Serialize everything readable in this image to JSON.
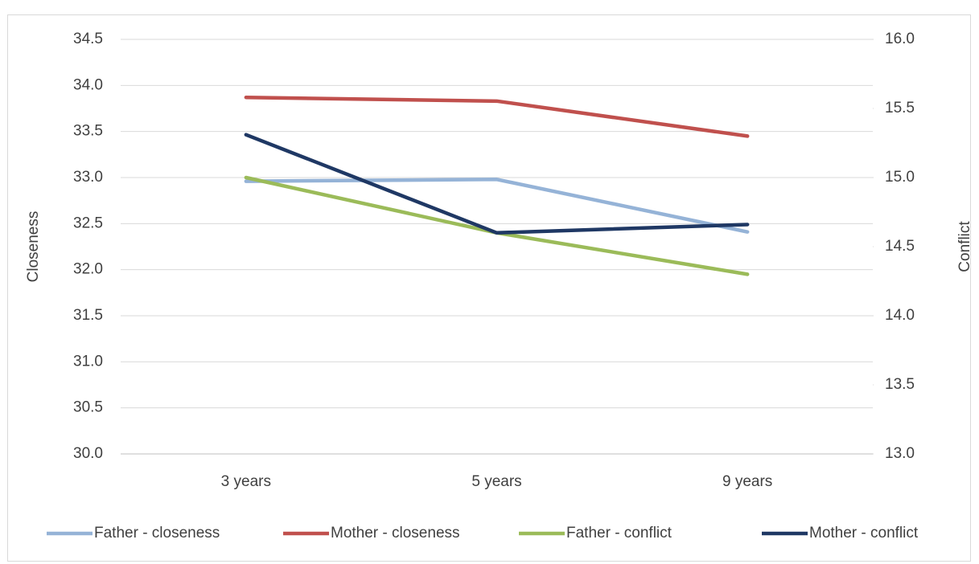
{
  "chart_data": {
    "type": "line",
    "categories": [
      "3 years",
      "5 years",
      "9 years"
    ],
    "y_label": "Closeness",
    "y2_label": "Conflict",
    "ylim": [
      30,
      34.5
    ],
    "yticks": [
      {
        "value": 30,
        "label": "30.0"
      },
      30.5,
      {
        "value": 31,
        "label": "31.0"
      },
      31.5,
      {
        "value": 32,
        "label": "32.0"
      },
      32.5,
      {
        "value": 33,
        "label": "33.0"
      },
      33.5,
      {
        "value": 34,
        "label": "34.0"
      },
      34.5
    ],
    "y2lim": [
      13,
      16
    ],
    "y2ticks": [
      {
        "value": 13,
        "label": "13.0"
      },
      13.5,
      {
        "value": 14,
        "label": "14.0"
      },
      14.5,
      {
        "value": 15,
        "label": "15.0"
      },
      15.5,
      {
        "value": 16,
        "label": "16.0"
      }
    ],
    "grid": true,
    "legend": "bottom",
    "series": [
      {
        "name": "Father - closeness",
        "color": "#95b3d7",
        "values": [
          32.96,
          32.98,
          32.41
        ]
      },
      {
        "name": "Mother - closeness",
        "color": "#c0504d",
        "values": [
          33.87,
          33.83,
          33.45
        ]
      },
      {
        "name": "Father - conflict",
        "color": "#9bbb59",
        "axis": "y2",
        "values": [
          15.0,
          14.6,
          14.3
        ]
      },
      {
        "name": "Mother - conflict",
        "color": "#1f3864",
        "axis": "y2",
        "values": [
          15.31,
          14.6,
          14.66
        ]
      }
    ]
  }
}
